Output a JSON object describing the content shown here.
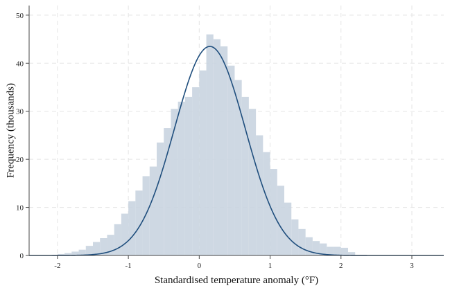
{
  "chart_data": {
    "type": "bar",
    "subtype": "histogram-with-normal-density",
    "title": "",
    "xlabel": "Standardised temperature anomaly (°F)",
    "ylabel": "Frequency (thousands)",
    "xlim": [
      -2.4,
      3.45
    ],
    "ylim": [
      0,
      52
    ],
    "xticks": [
      -2,
      -1,
      0,
      1,
      2,
      3
    ],
    "yticks": [
      0,
      10,
      20,
      30,
      40,
      50
    ],
    "grid": true,
    "bin_width": 0.1,
    "bins": [
      {
        "x0": -2.0,
        "y": 0.3
      },
      {
        "x0": -1.9,
        "y": 0.5
      },
      {
        "x0": -1.8,
        "y": 0.8
      },
      {
        "x0": -1.7,
        "y": 1.2
      },
      {
        "x0": -1.6,
        "y": 2.0
      },
      {
        "x0": -1.5,
        "y": 2.8
      },
      {
        "x0": -1.4,
        "y": 3.6
      },
      {
        "x0": -1.3,
        "y": 4.3
      },
      {
        "x0": -1.2,
        "y": 6.5
      },
      {
        "x0": -1.1,
        "y": 8.7
      },
      {
        "x0": -1.0,
        "y": 11.3
      },
      {
        "x0": -0.9,
        "y": 13.5
      },
      {
        "x0": -0.8,
        "y": 16.5
      },
      {
        "x0": -0.7,
        "y": 18.5
      },
      {
        "x0": -0.6,
        "y": 23.5
      },
      {
        "x0": -0.5,
        "y": 26.5
      },
      {
        "x0": -0.4,
        "y": 30.5
      },
      {
        "x0": -0.3,
        "y": 32.0
      },
      {
        "x0": -0.2,
        "y": 33.0
      },
      {
        "x0": -0.1,
        "y": 35.0
      },
      {
        "x0": 0.0,
        "y": 38.5
      },
      {
        "x0": 0.1,
        "y": 46.0
      },
      {
        "x0": 0.2,
        "y": 45.0
      },
      {
        "x0": 0.3,
        "y": 43.5
      },
      {
        "x0": 0.4,
        "y": 39.5
      },
      {
        "x0": 0.5,
        "y": 36.5
      },
      {
        "x0": 0.6,
        "y": 33.0
      },
      {
        "x0": 0.7,
        "y": 30.5
      },
      {
        "x0": 0.8,
        "y": 25.0
      },
      {
        "x0": 0.9,
        "y": 21.5
      },
      {
        "x0": 1.0,
        "y": 18.0
      },
      {
        "x0": 1.1,
        "y": 14.5
      },
      {
        "x0": 1.2,
        "y": 11.0
      },
      {
        "x0": 1.3,
        "y": 7.5
      },
      {
        "x0": 1.4,
        "y": 5.5
      },
      {
        "x0": 1.5,
        "y": 3.8
      },
      {
        "x0": 1.6,
        "y": 3.0
      },
      {
        "x0": 1.7,
        "y": 2.5
      },
      {
        "x0": 1.8,
        "y": 1.8
      },
      {
        "x0": 1.9,
        "y": 1.8
      },
      {
        "x0": 2.0,
        "y": 1.6
      },
      {
        "x0": 2.1,
        "y": 0.7
      }
    ],
    "density": {
      "distribution": "normal",
      "mean": 0.15,
      "sd": 0.5,
      "peak": 43.5,
      "x_range": [
        -2.4,
        3.45
      ]
    },
    "colors": {
      "bars": "#c9d4e0",
      "curve": "#1f4e7d",
      "grid": "#e4e4e4"
    }
  }
}
